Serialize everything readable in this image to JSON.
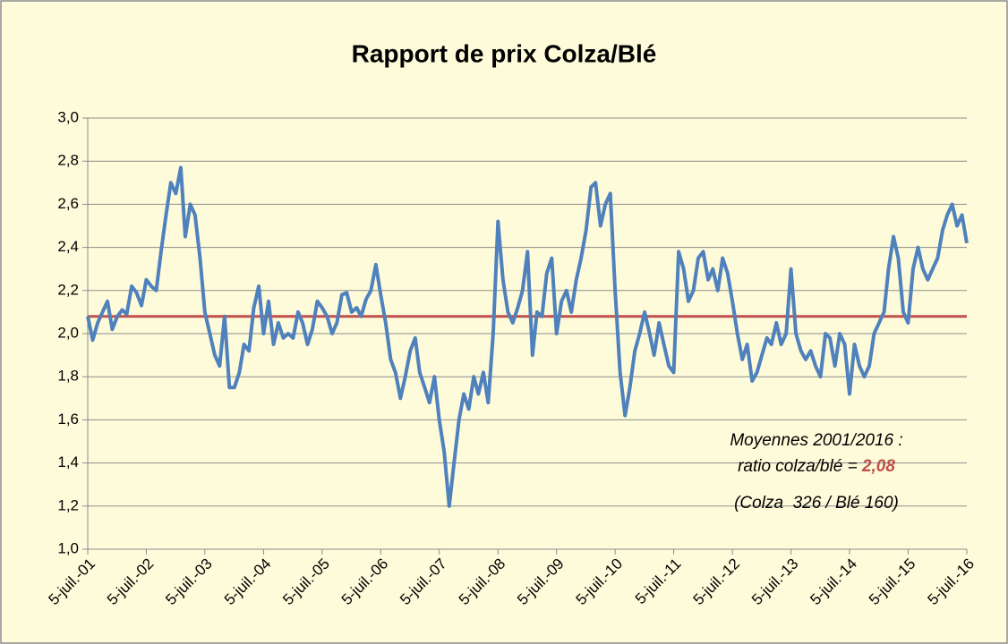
{
  "chart_data": {
    "type": "line",
    "title": "Rapport de prix Colza/Blé",
    "x": [
      "2001-07-05",
      "2001-08-05",
      "2001-09-05",
      "2001-10-05",
      "2001-11-05",
      "2001-12-05",
      "2002-01-05",
      "2002-02-05",
      "2002-03-05",
      "2002-04-05",
      "2002-05-05",
      "2002-06-05",
      "2002-07-05",
      "2002-08-05",
      "2002-09-05",
      "2002-10-05",
      "2002-11-05",
      "2002-12-05",
      "2003-01-05",
      "2003-02-05",
      "2003-03-05",
      "2003-04-05",
      "2003-05-05",
      "2003-06-05",
      "2003-07-05",
      "2003-08-05",
      "2003-09-05",
      "2003-10-05",
      "2003-11-05",
      "2003-12-05",
      "2004-01-05",
      "2004-02-05",
      "2004-03-05",
      "2004-04-05",
      "2004-05-05",
      "2004-06-05",
      "2004-07-05",
      "2004-08-05",
      "2004-09-05",
      "2004-10-05",
      "2004-11-05",
      "2004-12-05",
      "2005-01-05",
      "2005-02-05",
      "2005-03-05",
      "2005-04-05",
      "2005-05-05",
      "2005-06-05",
      "2005-07-05",
      "2005-08-05",
      "2005-09-05",
      "2005-10-05",
      "2005-11-05",
      "2005-12-05",
      "2006-01-05",
      "2006-02-05",
      "2006-03-05",
      "2006-04-05",
      "2006-05-05",
      "2006-06-05",
      "2006-07-05",
      "2006-08-05",
      "2006-09-05",
      "2006-10-05",
      "2006-11-05",
      "2006-12-05",
      "2007-01-05",
      "2007-02-05",
      "2007-03-05",
      "2007-04-05",
      "2007-05-05",
      "2007-06-05",
      "2007-07-05",
      "2007-08-05",
      "2007-09-05",
      "2007-10-05",
      "2007-11-05",
      "2007-12-05",
      "2008-01-05",
      "2008-02-05",
      "2008-03-05",
      "2008-04-05",
      "2008-05-05",
      "2008-06-05",
      "2008-07-05",
      "2008-08-05",
      "2008-09-05",
      "2008-10-05",
      "2008-11-05",
      "2008-12-05",
      "2009-01-05",
      "2009-02-05",
      "2009-03-05",
      "2009-04-05",
      "2009-05-05",
      "2009-06-05",
      "2009-07-05",
      "2009-08-05",
      "2009-09-05",
      "2009-10-05",
      "2009-11-05",
      "2009-12-05",
      "2010-01-05",
      "2010-02-05",
      "2010-03-05",
      "2010-04-05",
      "2010-05-05",
      "2010-06-05",
      "2010-07-05",
      "2010-08-05",
      "2010-09-05",
      "2010-10-05",
      "2010-11-05",
      "2010-12-05",
      "2011-01-05",
      "2011-02-05",
      "2011-03-05",
      "2011-04-05",
      "2011-05-05",
      "2011-06-05",
      "2011-07-05",
      "2011-08-05",
      "2011-09-05",
      "2011-10-05",
      "2011-11-05",
      "2011-12-05",
      "2012-01-05",
      "2012-02-05",
      "2012-03-05",
      "2012-04-05",
      "2012-05-05",
      "2012-06-05",
      "2012-07-05",
      "2012-08-05",
      "2012-09-05",
      "2012-10-05",
      "2012-11-05",
      "2012-12-05",
      "2013-01-05",
      "2013-02-05",
      "2013-03-05",
      "2013-04-05",
      "2013-05-05",
      "2013-06-05",
      "2013-07-05",
      "2013-08-05",
      "2013-09-05",
      "2013-10-05",
      "2013-11-05",
      "2013-12-05",
      "2014-01-05",
      "2014-02-05",
      "2014-03-05",
      "2014-04-05",
      "2014-05-05",
      "2014-06-05",
      "2014-07-05",
      "2014-08-05",
      "2014-09-05",
      "2014-10-05",
      "2014-11-05",
      "2014-12-05",
      "2015-01-05",
      "2015-02-05",
      "2015-03-05",
      "2015-04-05",
      "2015-05-05",
      "2015-06-05",
      "2015-07-05",
      "2015-08-05",
      "2015-09-05",
      "2015-10-05",
      "2015-11-05",
      "2015-12-05",
      "2016-01-05",
      "2016-02-05",
      "2016-03-05",
      "2016-04-05",
      "2016-05-05",
      "2016-06-05",
      "2016-07-05"
    ],
    "series": [
      {
        "name": "Colza/Blé",
        "color": "#4f81bd",
        "values": [
          2.08,
          1.97,
          2.05,
          2.1,
          2.15,
          2.02,
          2.08,
          2.11,
          2.09,
          2.22,
          2.19,
          2.13,
          2.25,
          2.22,
          2.2,
          2.38,
          2.55,
          2.7,
          2.65,
          2.77,
          2.45,
          2.6,
          2.55,
          2.35,
          2.1,
          2.0,
          1.9,
          1.85,
          2.08,
          1.75,
          1.75,
          1.82,
          1.95,
          1.92,
          2.12,
          2.22,
          2.0,
          2.15,
          1.95,
          2.05,
          1.98,
          2.0,
          1.98,
          2.1,
          2.05,
          1.95,
          2.02,
          2.15,
          2.12,
          2.08,
          2.0,
          2.05,
          2.18,
          2.19,
          2.1,
          2.12,
          2.08,
          2.16,
          2.2,
          2.32,
          2.18,
          2.05,
          1.88,
          1.82,
          1.7,
          1.8,
          1.92,
          1.98,
          1.82,
          1.75,
          1.68,
          1.8,
          1.6,
          1.45,
          1.2,
          1.4,
          1.6,
          1.72,
          1.65,
          1.8,
          1.72,
          1.82,
          1.68,
          2.0,
          2.52,
          2.25,
          2.1,
          2.05,
          2.12,
          2.2,
          2.38,
          1.9,
          2.1,
          2.08,
          2.28,
          2.35,
          2.0,
          2.15,
          2.2,
          2.1,
          2.25,
          2.35,
          2.48,
          2.68,
          2.7,
          2.5,
          2.6,
          2.65,
          2.2,
          1.82,
          1.62,
          1.75,
          1.92,
          2.0,
          2.1,
          2.0,
          1.9,
          2.05,
          1.95,
          1.85,
          1.82,
          2.38,
          2.3,
          2.15,
          2.2,
          2.35,
          2.38,
          2.25,
          2.3,
          2.2,
          2.35,
          2.28,
          2.15,
          2.0,
          1.88,
          1.95,
          1.78,
          1.82,
          1.9,
          1.98,
          1.95,
          2.05,
          1.95,
          2.0,
          2.3,
          2.0,
          1.92,
          1.88,
          1.92,
          1.85,
          1.8,
          2.0,
          1.98,
          1.85,
          2.0,
          1.95,
          1.72,
          1.95,
          1.85,
          1.8,
          1.85,
          2.0,
          2.05,
          2.1,
          2.3,
          2.45,
          2.35,
          2.1,
          2.05,
          2.3,
          2.4,
          2.3,
          2.25,
          2.3,
          2.35,
          2.48,
          2.55,
          2.6,
          2.5,
          2.55,
          2.42
        ]
      }
    ],
    "reference_line": {
      "value": 2.08,
      "color": "#c0504d"
    },
    "annotation": {
      "lines": [
        "Moyennes 2001/2016 :",
        "ratio colza/blé =",
        "(Colza  326 / Blé 160)"
      ],
      "highlight": "2,08"
    },
    "xlim": [
      "2001-07-05",
      "2016-07-05"
    ],
    "xticks": [
      {
        "value": "2001-07-05",
        "label": "5-juil.-01"
      },
      {
        "value": "2002-07-05",
        "label": "5-juil.-02"
      },
      {
        "value": "2003-07-05",
        "label": "5-juil.-03"
      },
      {
        "value": "2004-07-05",
        "label": "5-juil.-04"
      },
      {
        "value": "2005-07-05",
        "label": "5-juil.-05"
      },
      {
        "value": "2006-07-05",
        "label": "5-juil.-06"
      },
      {
        "value": "2007-07-05",
        "label": "5-juil.-07"
      },
      {
        "value": "2008-07-05",
        "label": "5-juil.-08"
      },
      {
        "value": "2009-07-05",
        "label": "5-juil.-09"
      },
      {
        "value": "2010-07-05",
        "label": "5-juil.-10"
      },
      {
        "value": "2011-07-05",
        "label": "5-juil.-11"
      },
      {
        "value": "2012-07-05",
        "label": "5-juil.-12"
      },
      {
        "value": "2013-07-05",
        "label": "5-juil.-13"
      },
      {
        "value": "2014-07-05",
        "label": "5-juil.-14"
      },
      {
        "value": "2015-07-05",
        "label": "5-juil.-15"
      },
      {
        "value": "2016-07-05",
        "label": "5-juil.-16"
      }
    ],
    "ylim": [
      1.0,
      3.0
    ],
    "yticks": [
      {
        "value": 1.0,
        "label": "1,0"
      },
      {
        "value": 1.2,
        "label": "1,2"
      },
      {
        "value": 1.4,
        "label": "1,4"
      },
      {
        "value": 1.6,
        "label": "1,6"
      },
      {
        "value": 1.8,
        "label": "1,8"
      },
      {
        "value": 2.0,
        "label": "2,0"
      },
      {
        "value": 2.2,
        "label": "2,2"
      },
      {
        "value": 2.4,
        "label": "2,4"
      },
      {
        "value": 2.6,
        "label": "2,6"
      },
      {
        "value": 2.8,
        "label": "2,8"
      },
      {
        "value": 3.0,
        "label": "3,0"
      }
    ],
    "grid": true
  }
}
